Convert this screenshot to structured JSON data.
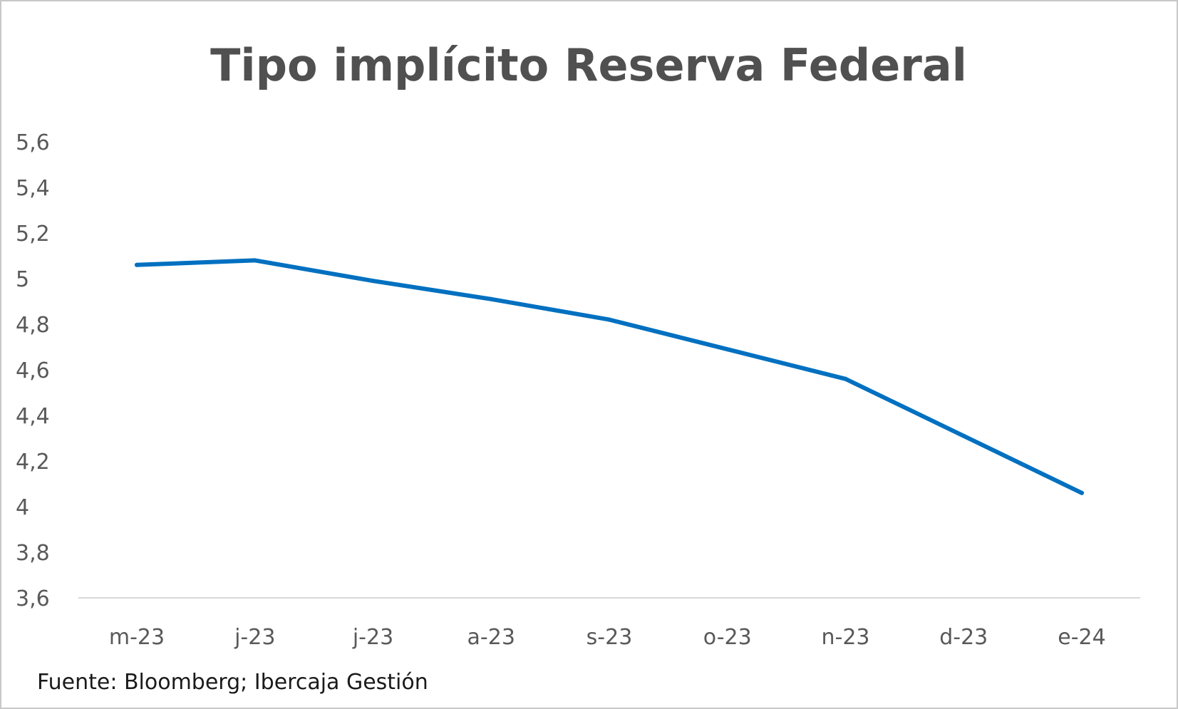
{
  "chart_data": {
    "type": "line",
    "title": "Tipo implícito Reserva Federal",
    "categories": [
      "m-23",
      "j-23",
      "j-23",
      "a-23",
      "s-23",
      "o-23",
      "n-23",
      "d-23",
      "e-24"
    ],
    "series": [
      {
        "values": [
          5.06,
          5.08,
          4.99,
          4.91,
          4.82,
          4.69,
          4.56,
          4.31,
          4.06
        ],
        "color": "#0070c0"
      }
    ],
    "ylim": [
      3.6,
      5.6
    ],
    "yticks": [
      "3,6",
      "3,8",
      "4",
      "4,2",
      "4,4",
      "4,6",
      "4,8",
      "5",
      "5,2",
      "5,4",
      "5,6"
    ],
    "xlabel": "",
    "ylabel": "",
    "grid": false,
    "legend": "none"
  },
  "source": "Fuente: Bloomberg; Ibercaja Gestión",
  "colors": {
    "line": "#0070c0",
    "axis": "#d9d9d9",
    "text": "#595959",
    "title": "#505050",
    "border": "#c8c8c8"
  }
}
